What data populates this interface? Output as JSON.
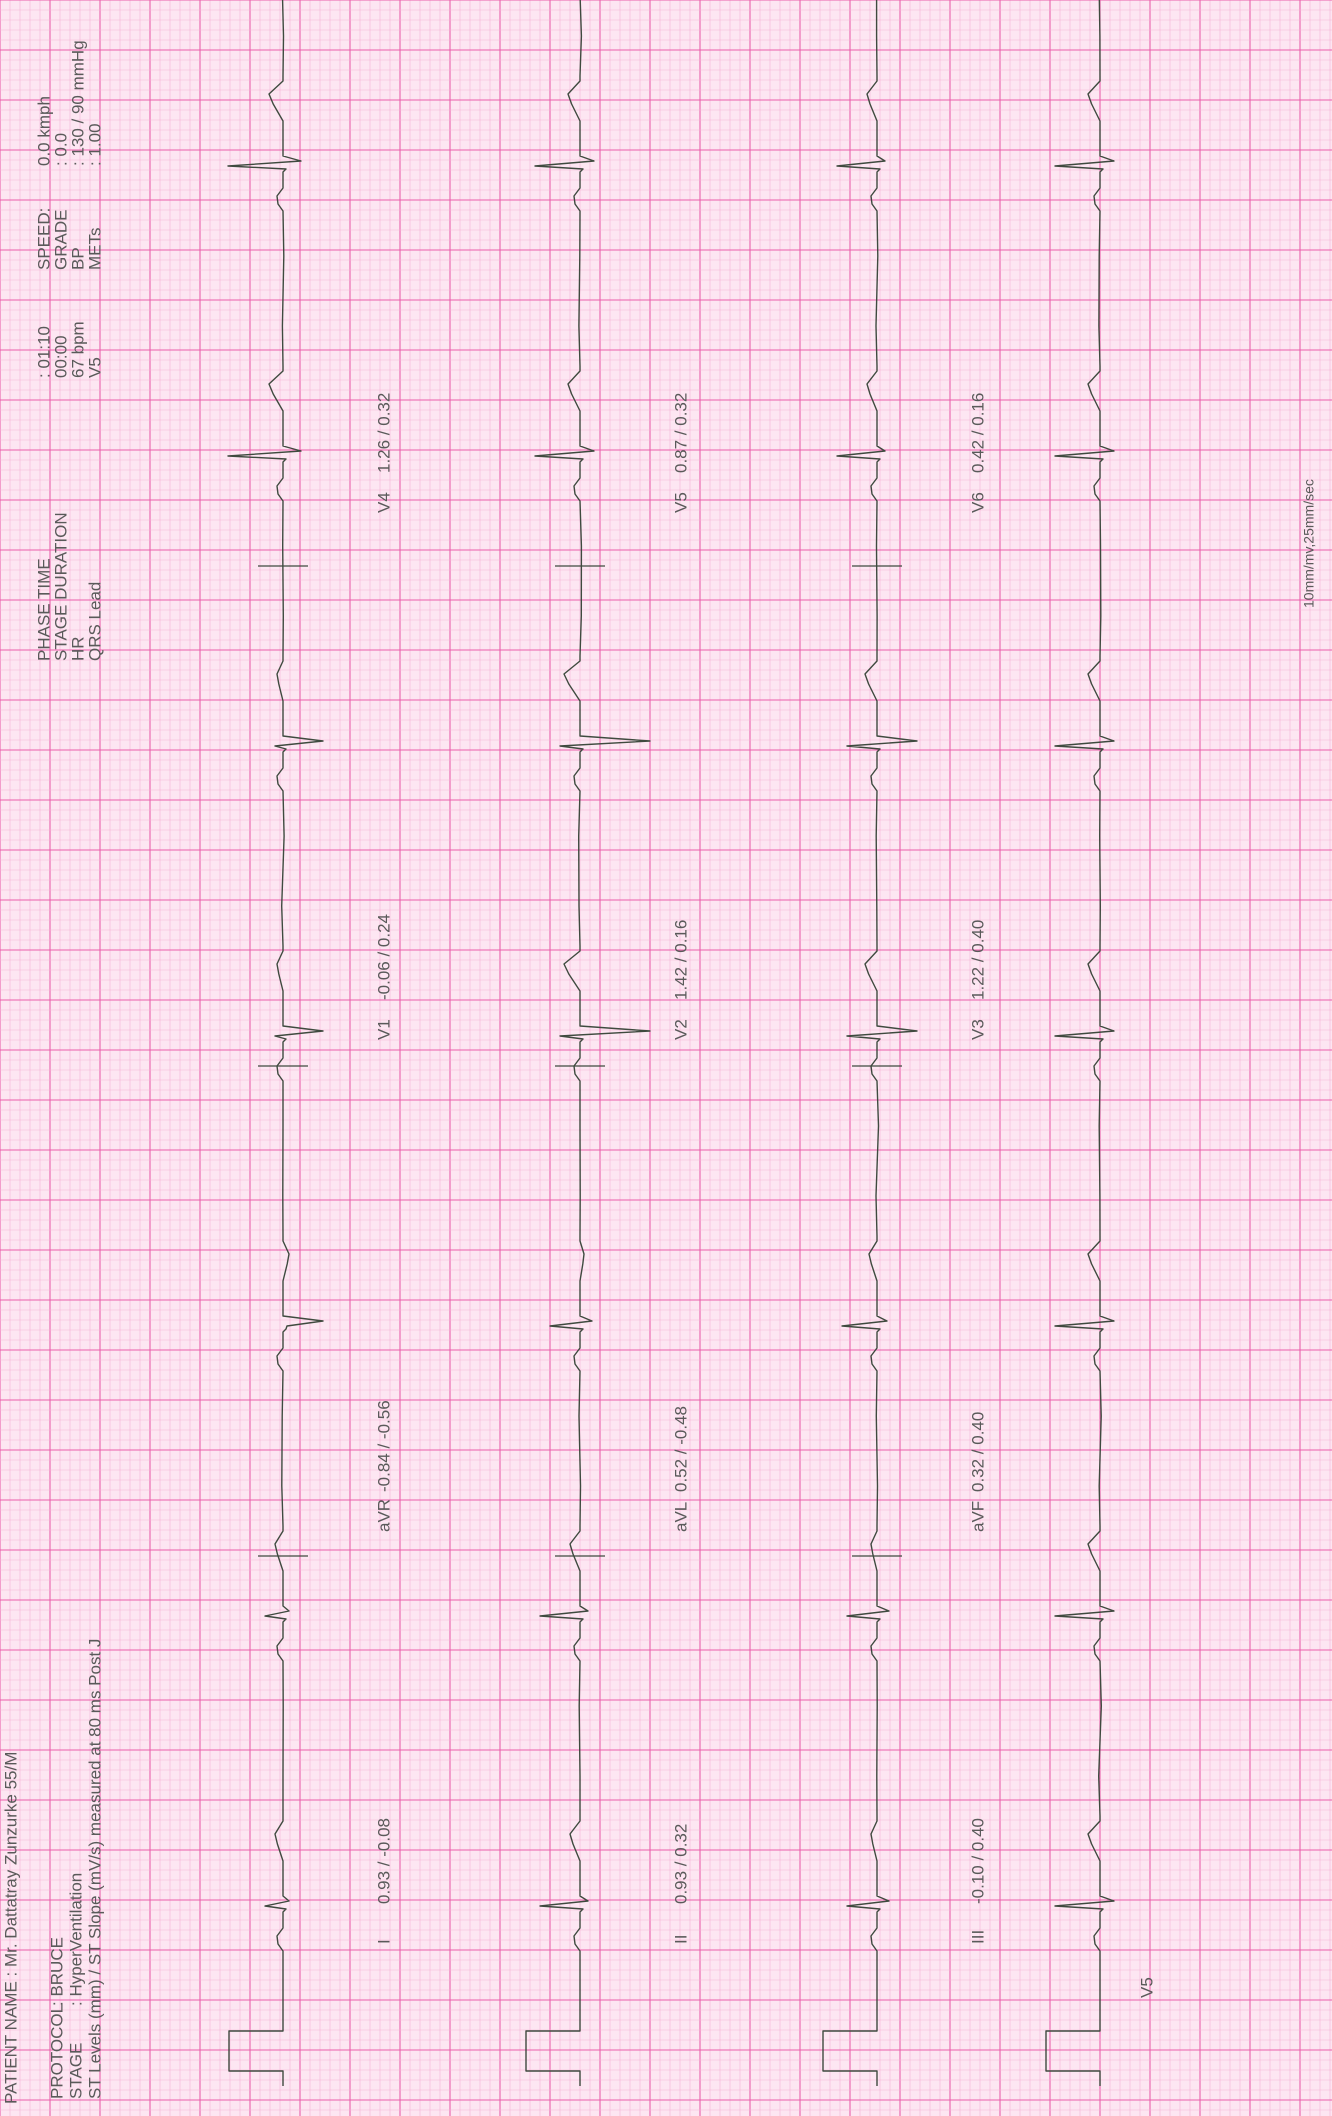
{
  "header": {
    "patient_name": "PATIENT NAME :  Mr. Dattatray Zunzurke 55/M",
    "protocol": {
      "label": "PROTOCOL",
      "value": ":  BRUCE"
    },
    "stage": {
      "label": "STAGE",
      "value": ":  HyperVentilation"
    },
    "st_note": "ST Levels (mm) / ST Slope (mV/s) measured at 80 ms Post J"
  },
  "status": [
    {
      "label": "PHASE TIME",
      "value": ": 01:10"
    },
    {
      "label": "STAGE DURATION",
      "value": "00:00"
    },
    {
      "label": "HR",
      "value": "67 bpm"
    },
    {
      "label": "QRS Lead",
      "value": "V5"
    }
  ],
  "conditions": [
    {
      "label": "SPEED:",
      "value": "0.0 kmph"
    },
    {
      "label": "GRADE",
      "value": ": 0.0"
    },
    {
      "label": "BP",
      "value": ": 130 / 90 mmHg"
    },
    {
      "label": "METs",
      "value": ": 1.00"
    }
  ],
  "leads": [
    [
      {
        "name": "I",
        "st": "0.93 / -0.08"
      },
      {
        "name": "aVR",
        "st": "-0.84 / -0.56"
      },
      {
        "name": "V1",
        "st": "-0.06 / 0.24"
      },
      {
        "name": "V4",
        "st": "1.26 / 0.32"
      }
    ],
    [
      {
        "name": "II",
        "st": "0.93 / 0.32"
      },
      {
        "name": "aVL",
        "st": "0.52 / -0.48"
      },
      {
        "name": "V2",
        "st": "1.42 / 0.16"
      },
      {
        "name": "V5",
        "st": "0.87 / 0.32"
      }
    ],
    [
      {
        "name": "III",
        "st": "-0.10 / 0.40"
      },
      {
        "name": "aVF",
        "st": "0.32 / 0.40"
      },
      {
        "name": "V3",
        "st": "1.22 / 0.40"
      },
      {
        "name": "V6",
        "st": "0.42 / 0.16"
      }
    ]
  ],
  "rhythm_lead": "V5",
  "footer": "10mm/mv,25mm/sec"
}
